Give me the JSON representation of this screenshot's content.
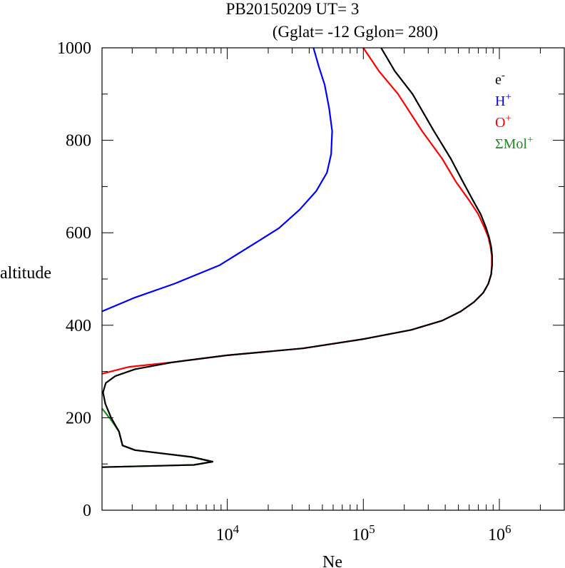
{
  "chart_data": {
    "type": "line",
    "title": "PB20150209   UT=  3",
    "subtitle": "(Gglat= -12   Gglon=  280)",
    "xlabel": "Ne",
    "ylabel": "altitude",
    "xscale": "log",
    "xlim": [
      1200,
      3000000
    ],
    "ylim": [
      0,
      1000
    ],
    "x_ticks": [
      {
        "value": 10000,
        "base": "10",
        "exp": "4"
      },
      {
        "value": 100000,
        "base": "10",
        "exp": "5"
      },
      {
        "value": 1000000,
        "base": "10",
        "exp": "6"
      }
    ],
    "y_ticks": [
      0,
      200,
      400,
      600,
      800,
      1000
    ],
    "legend_position": "top-right",
    "series": [
      {
        "name": "H+",
        "legend_base": "H",
        "legend_sup": "+",
        "color": "#0000ff",
        "points": [
          [
            1200,
            430
          ],
          [
            2100,
            460
          ],
          [
            4100,
            490
          ],
          [
            8800,
            530
          ],
          [
            16500,
            580
          ],
          [
            24000,
            610
          ],
          [
            34000,
            650
          ],
          [
            45000,
            690
          ],
          [
            54000,
            730
          ],
          [
            58000,
            770
          ],
          [
            59000,
            820
          ],
          [
            56000,
            870
          ],
          [
            52000,
            920
          ],
          [
            47000,
            960
          ],
          [
            43000,
            1000
          ]
        ]
      },
      {
        "name": "O+",
        "legend_base": "O",
        "legend_sup": "+",
        "color": "#ff0000",
        "points": [
          [
            1200,
            295
          ],
          [
            1900,
            310
          ],
          [
            4000,
            320
          ],
          [
            10000,
            335
          ],
          [
            36000,
            350
          ],
          [
            100000,
            370
          ],
          [
            225000,
            390
          ],
          [
            380000,
            410
          ],
          [
            520000,
            430
          ],
          [
            650000,
            450
          ],
          [
            760000,
            470
          ],
          [
            830000,
            490
          ],
          [
            870000,
            510
          ],
          [
            880000,
            530
          ],
          [
            880000,
            550
          ],
          [
            860000,
            570
          ],
          [
            830000,
            590
          ],
          [
            780000,
            610
          ],
          [
            700000,
            640
          ],
          [
            600000,
            670
          ],
          [
            480000,
            710
          ],
          [
            380000,
            760
          ],
          [
            270000,
            820
          ],
          [
            180000,
            900
          ],
          [
            130000,
            950
          ],
          [
            100000,
            1000
          ]
        ]
      },
      {
        "name": "ΣMol+",
        "legend_base": "ΣMol",
        "legend_sup": "+",
        "color": "#228b22",
        "points": [
          [
            1200,
            220
          ],
          [
            1400,
            195
          ],
          [
            1600,
            170
          ],
          [
            1700,
            140
          ],
          [
            2100,
            130
          ],
          [
            5500,
            115
          ],
          [
            7800,
            105
          ],
          [
            5700,
            98
          ],
          [
            1200,
            93
          ]
        ]
      },
      {
        "name": "e-",
        "legend_base": "e",
        "legend_sup": "-",
        "color": "#000000",
        "points": [
          [
            1200,
            93
          ],
          [
            5700,
            98
          ],
          [
            7800,
            105
          ],
          [
            5500,
            115
          ],
          [
            2100,
            130
          ],
          [
            1700,
            140
          ],
          [
            1600,
            170
          ],
          [
            1400,
            200
          ],
          [
            1270,
            230
          ],
          [
            1220,
            255
          ],
          [
            1280,
            275
          ],
          [
            1500,
            290
          ],
          [
            2100,
            305
          ],
          [
            4000,
            320
          ],
          [
            10000,
            335
          ],
          [
            36000,
            350
          ],
          [
            100000,
            370
          ],
          [
            225000,
            390
          ],
          [
            380000,
            410
          ],
          [
            520000,
            430
          ],
          [
            650000,
            450
          ],
          [
            760000,
            470
          ],
          [
            830000,
            490
          ],
          [
            870000,
            510
          ],
          [
            885000,
            530
          ],
          [
            885000,
            550
          ],
          [
            870000,
            570
          ],
          [
            840000,
            590
          ],
          [
            800000,
            610
          ],
          [
            730000,
            640
          ],
          [
            640000,
            670
          ],
          [
            540000,
            710
          ],
          [
            440000,
            760
          ],
          [
            330000,
            820
          ],
          [
            230000,
            900
          ],
          [
            170000,
            950
          ],
          [
            135000,
            1000
          ]
        ]
      }
    ]
  }
}
